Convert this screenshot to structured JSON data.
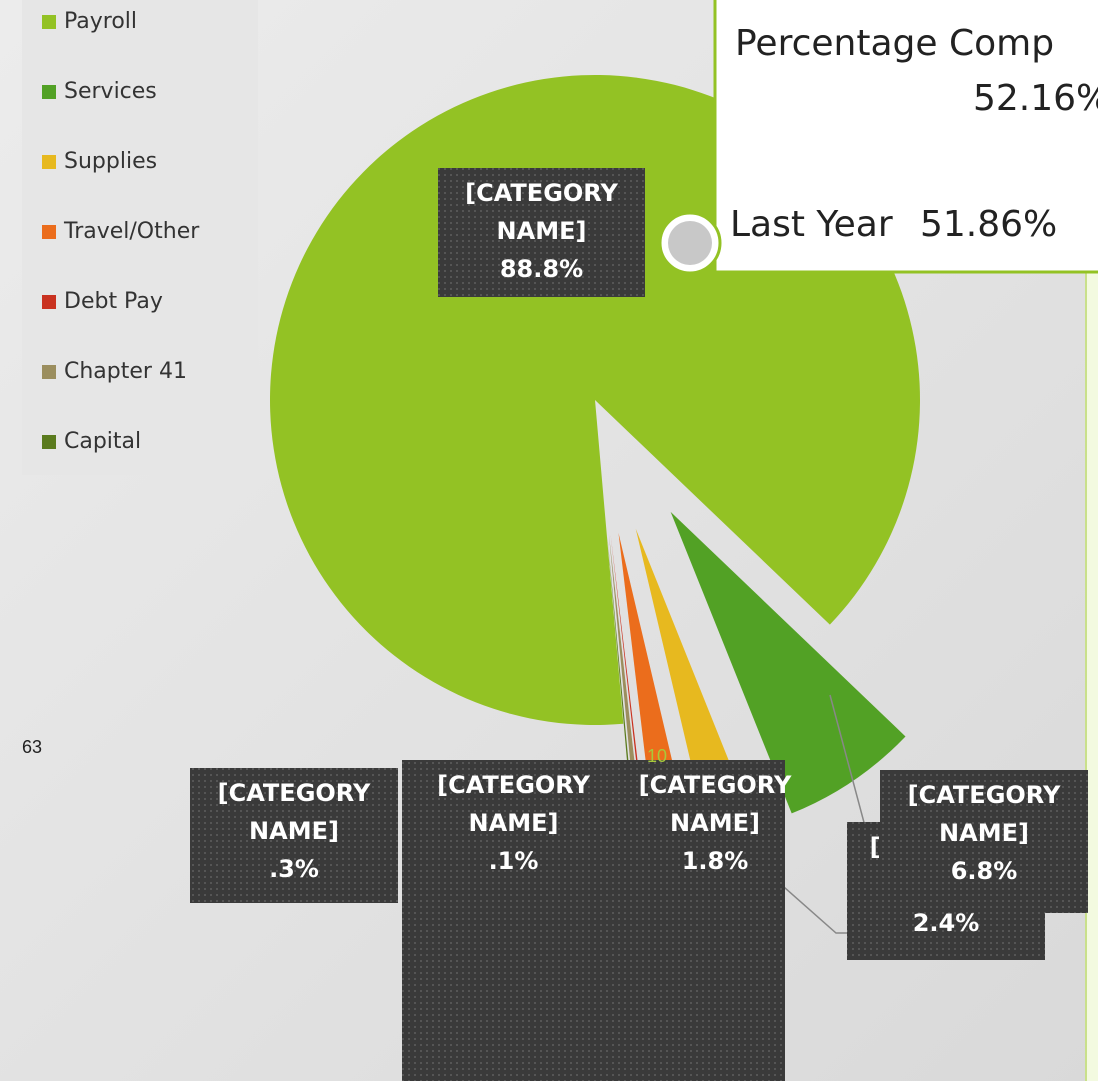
{
  "chart_data": {
    "type": "pie",
    "categories": [
      "Payroll",
      "Services",
      "Supplies",
      "Travel/Other",
      "Debt Pay",
      "Chapter 41",
      "Capital"
    ],
    "values": [
      88.8,
      6.8,
      2.4,
      1.8,
      0.1,
      0.3,
      0.1
    ],
    "value_labels": [
      "88.8%",
      "6.8%",
      "2.4%",
      "1.8%",
      ".1%",
      ".3%",
      null
    ],
    "colors": [
      "#93c224",
      "#52a125",
      "#e7b91f",
      "#eb6d1c",
      "#c93220",
      "#9b8e5e",
      "#5b7b1e"
    ],
    "label_text": "[CATEGORY NAME]",
    "legend": "top-left"
  },
  "callout": {
    "title": "Percentage Comp",
    "current": "52.16%",
    "last_year_label": "Last Year",
    "last_year": "51.86%"
  },
  "page_numbers": [
    "63",
    "10"
  ]
}
